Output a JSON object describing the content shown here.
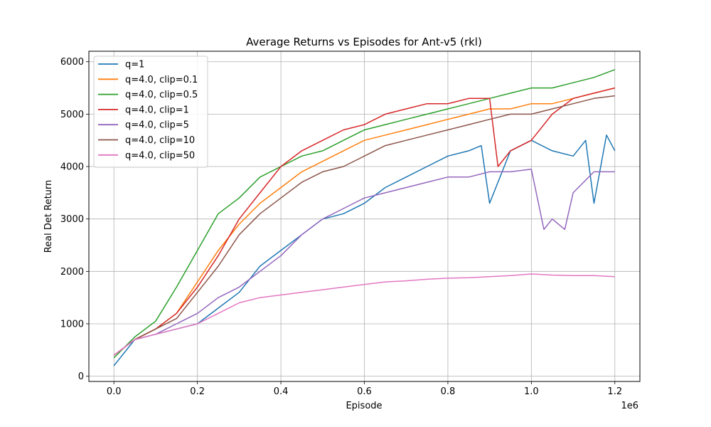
{
  "chart_data": {
    "type": "line",
    "title": "Average Returns vs Episodes for Ant-v5 (rkl)",
    "xlabel": "Episode",
    "ylabel": "Real Det Return",
    "x_offset_label": "1e6",
    "xlim": [
      -60000,
      1260000
    ],
    "ylim": [
      -100,
      6200
    ],
    "x_ticks": [
      0,
      0.2,
      0.4,
      0.6,
      0.8,
      1.0,
      1.2
    ],
    "x_tick_labels": [
      "0.0",
      "0.2",
      "0.4",
      "0.6",
      "0.8",
      "1.0",
      "1.2"
    ],
    "y_ticks": [
      0,
      1000,
      2000,
      3000,
      4000,
      5000,
      6000
    ],
    "y_tick_labels": [
      "0",
      "1000",
      "2000",
      "3000",
      "4000",
      "5000",
      "6000"
    ],
    "grid": true,
    "legend_position": "upper-left",
    "x_unit_scale": 1000000,
    "series": [
      {
        "name": "q=1",
        "color": "#1f77b4",
        "x": [
          0,
          0.05,
          0.1,
          0.15,
          0.2,
          0.25,
          0.3,
          0.35,
          0.4,
          0.45,
          0.5,
          0.55,
          0.6,
          0.65,
          0.7,
          0.75,
          0.8,
          0.85,
          0.88,
          0.9,
          0.95,
          1.0,
          1.05,
          1.1,
          1.13,
          1.15,
          1.18,
          1.2
        ],
        "values": [
          200,
          700,
          800,
          900,
          1000,
          1300,
          1600,
          2100,
          2400,
          2700,
          3000,
          3100,
          3300,
          3600,
          3800,
          4000,
          4200,
          4300,
          4400,
          3300,
          4300,
          4500,
          4300,
          4200,
          4500,
          3300,
          4600,
          4300
        ]
      },
      {
        "name": "q=4.0, clip=0.1",
        "color": "#ff7f0e",
        "x": [
          0,
          0.05,
          0.1,
          0.15,
          0.2,
          0.25,
          0.3,
          0.35,
          0.4,
          0.45,
          0.5,
          0.55,
          0.6,
          0.65,
          0.7,
          0.75,
          0.8,
          0.85,
          0.9,
          0.95,
          1.0,
          1.05,
          1.1,
          1.15,
          1.2
        ],
        "values": [
          400,
          700,
          900,
          1200,
          1800,
          2400,
          2900,
          3300,
          3600,
          3900,
          4100,
          4300,
          4500,
          4600,
          4700,
          4800,
          4900,
          5000,
          5100,
          5100,
          5200,
          5200,
          5300,
          5400,
          5500
        ]
      },
      {
        "name": "q=4.0, clip=0.5",
        "color": "#2ca02c",
        "x": [
          0,
          0.05,
          0.1,
          0.15,
          0.2,
          0.25,
          0.3,
          0.35,
          0.4,
          0.45,
          0.5,
          0.55,
          0.6,
          0.65,
          0.7,
          0.75,
          0.8,
          0.85,
          0.9,
          0.95,
          1.0,
          1.05,
          1.1,
          1.15,
          1.2
        ],
        "values": [
          350,
          750,
          1050,
          1700,
          2400,
          3100,
          3400,
          3800,
          4000,
          4200,
          4300,
          4500,
          4700,
          4800,
          4900,
          5000,
          5100,
          5200,
          5300,
          5400,
          5500,
          5500,
          5600,
          5700,
          5850
        ]
      },
      {
        "name": "q=4.0, clip=1",
        "color": "#d62728",
        "x": [
          0,
          0.05,
          0.1,
          0.15,
          0.2,
          0.25,
          0.3,
          0.35,
          0.4,
          0.45,
          0.5,
          0.55,
          0.6,
          0.65,
          0.7,
          0.75,
          0.8,
          0.85,
          0.9,
          0.92,
          0.95,
          1.0,
          1.05,
          1.1,
          1.15,
          1.2
        ],
        "values": [
          400,
          700,
          900,
          1200,
          1700,
          2300,
          3000,
          3500,
          4000,
          4300,
          4500,
          4700,
          4800,
          5000,
          5100,
          5200,
          5200,
          5300,
          5300,
          4000,
          4300,
          4500,
          5000,
          5300,
          5400,
          5500
        ]
      },
      {
        "name": "q=4.0, clip=5",
        "color": "#9467bd",
        "x": [
          0,
          0.05,
          0.1,
          0.15,
          0.2,
          0.25,
          0.3,
          0.35,
          0.4,
          0.45,
          0.5,
          0.55,
          0.6,
          0.65,
          0.7,
          0.75,
          0.8,
          0.85,
          0.9,
          0.95,
          1.0,
          1.03,
          1.05,
          1.08,
          1.1,
          1.15,
          1.2
        ],
        "values": [
          400,
          700,
          800,
          1000,
          1200,
          1500,
          1700,
          2000,
          2300,
          2700,
          3000,
          3200,
          3400,
          3500,
          3600,
          3700,
          3800,
          3800,
          3900,
          3900,
          3950,
          2800,
          3000,
          2800,
          3500,
          3900,
          3900
        ]
      },
      {
        "name": "q=4.0, clip=10",
        "color": "#8c564b",
        "x": [
          0,
          0.05,
          0.1,
          0.15,
          0.2,
          0.25,
          0.3,
          0.35,
          0.4,
          0.45,
          0.5,
          0.55,
          0.6,
          0.65,
          0.7,
          0.75,
          0.8,
          0.85,
          0.9,
          0.95,
          1.0,
          1.05,
          1.1,
          1.15,
          1.2
        ],
        "values": [
          400,
          700,
          900,
          1100,
          1600,
          2100,
          2700,
          3100,
          3400,
          3700,
          3900,
          4000,
          4200,
          4400,
          4500,
          4600,
          4700,
          4800,
          4900,
          5000,
          5000,
          5100,
          5200,
          5300,
          5350
        ]
      },
      {
        "name": "q=4.0, clip=50",
        "color": "#e377c2",
        "x": [
          0,
          0.05,
          0.1,
          0.15,
          0.2,
          0.25,
          0.3,
          0.35,
          0.4,
          0.45,
          0.5,
          0.55,
          0.6,
          0.65,
          0.7,
          0.75,
          0.8,
          0.85,
          0.9,
          0.95,
          1.0,
          1.05,
          1.1,
          1.15,
          1.2
        ],
        "values": [
          400,
          700,
          800,
          900,
          1000,
          1200,
          1400,
          1500,
          1550,
          1600,
          1650,
          1700,
          1750,
          1800,
          1820,
          1850,
          1870,
          1880,
          1900,
          1920,
          1950,
          1930,
          1920,
          1920,
          1900
        ]
      }
    ]
  }
}
